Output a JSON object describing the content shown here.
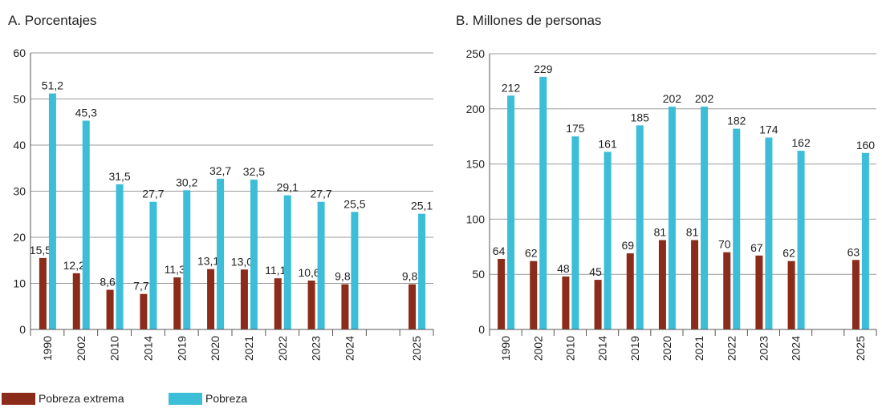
{
  "chart_data": [
    {
      "type": "bar",
      "title": "A. Porcentajes",
      "categories": [
        "1990",
        "2002",
        "2010",
        "2014",
        "2019",
        "2020",
        "2021",
        "2022",
        "2023",
        "2024",
        null,
        "2025"
      ],
      "series": [
        {
          "name": "Pobreza extrema",
          "color": "#8b2b19",
          "values": [
            15.5,
            12.2,
            8.6,
            7.7,
            11.3,
            13.1,
            13.0,
            11.1,
            10.6,
            9.8,
            null,
            9.8
          ],
          "value_labels": [
            "15,5",
            "12,2",
            "8,6",
            "7,7",
            "11,3",
            "13,1",
            "13,0",
            "11,1",
            "10,6",
            "9,8",
            null,
            "9,8"
          ]
        },
        {
          "name": "Pobreza",
          "color": "#3cbdd8",
          "values": [
            51.2,
            45.3,
            31.5,
            27.7,
            30.2,
            32.7,
            32.5,
            29.1,
            27.7,
            25.5,
            null,
            25.1
          ],
          "value_labels": [
            "51,2",
            "45,3",
            "31,5",
            "27,7",
            "30,2",
            "32,7",
            "32,5",
            "29,1",
            "27,7",
            "25,5",
            null,
            "25,1"
          ]
        }
      ],
      "ylim": [
        0,
        60
      ],
      "yticks": [
        0,
        10,
        20,
        30,
        40,
        50,
        60
      ],
      "grid": true
    },
    {
      "type": "bar",
      "title": "B. Millones de personas",
      "categories": [
        "1990",
        "2002",
        "2010",
        "2014",
        "2019",
        "2020",
        "2021",
        "2022",
        "2023",
        "2024",
        null,
        "2025"
      ],
      "series": [
        {
          "color": "#8b2b19",
          "values": [
            64,
            62,
            48,
            45,
            69,
            81,
            81,
            70,
            67,
            62,
            null,
            63
          ]
        },
        {
          "color": "#3cbdd8",
          "values": [
            212,
            229,
            175,
            161,
            185,
            202,
            202,
            182,
            174,
            162,
            null,
            160
          ]
        }
      ],
      "ylim": [
        0,
        250
      ],
      "yticks": [
        0,
        50,
        100,
        150,
        200,
        250
      ],
      "grid": true
    }
  ]
}
